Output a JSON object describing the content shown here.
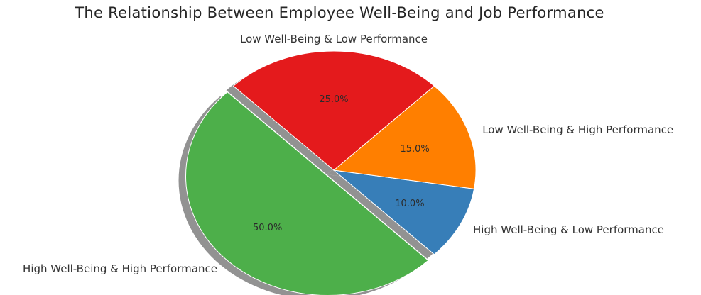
{
  "chart_data": {
    "type": "pie",
    "title": "The Relationship Between Employee Well-Being and Job Performance",
    "slices": [
      {
        "label": "High Well-Being & High Performance",
        "value": 50.0,
        "pct_label": "50.0%",
        "color": "#4daf4a",
        "exploded": true
      },
      {
        "label": "High Well-Being & Low Performance",
        "value": 10.0,
        "pct_label": "10.0%",
        "color": "#377eb8",
        "exploded": false
      },
      {
        "label": "Low Well-Being & High Performance",
        "value": 15.0,
        "pct_label": "15.0%",
        "color": "#ff7f00",
        "exploded": false
      },
      {
        "label": "Low Well-Being & Low Performance",
        "value": 25.0,
        "pct_label": "25.0%",
        "color": "#e41a1c",
        "exploded": false
      }
    ],
    "shadow": true,
    "legend": "none"
  }
}
